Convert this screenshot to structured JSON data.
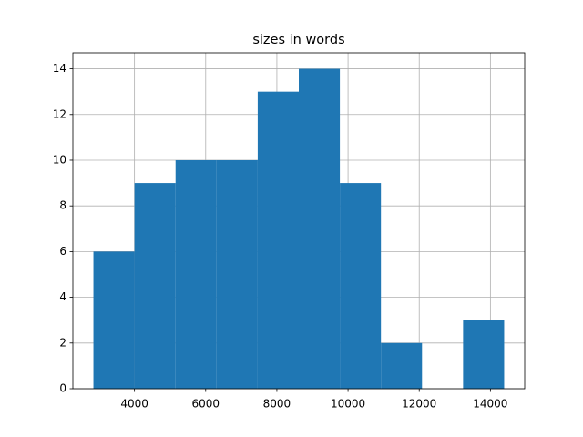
{
  "chart_data": {
    "type": "histogram",
    "title": "sizes in words",
    "bins": [
      2846,
      4000,
      5154,
      6308,
      7462,
      8616,
      9770,
      10924,
      12078,
      13232,
      14386
    ],
    "values": [
      6,
      9,
      10,
      10,
      13,
      14,
      9,
      2,
      0,
      3
    ],
    "color": "#1f77b4",
    "xlim": [
      2269,
      14963
    ],
    "xticks": [
      4000,
      6000,
      8000,
      10000,
      12000,
      14000
    ],
    "ylim": [
      0,
      14.7
    ],
    "yticks": [
      0,
      2,
      4,
      6,
      8,
      10,
      12,
      14
    ],
    "grid": true
  }
}
